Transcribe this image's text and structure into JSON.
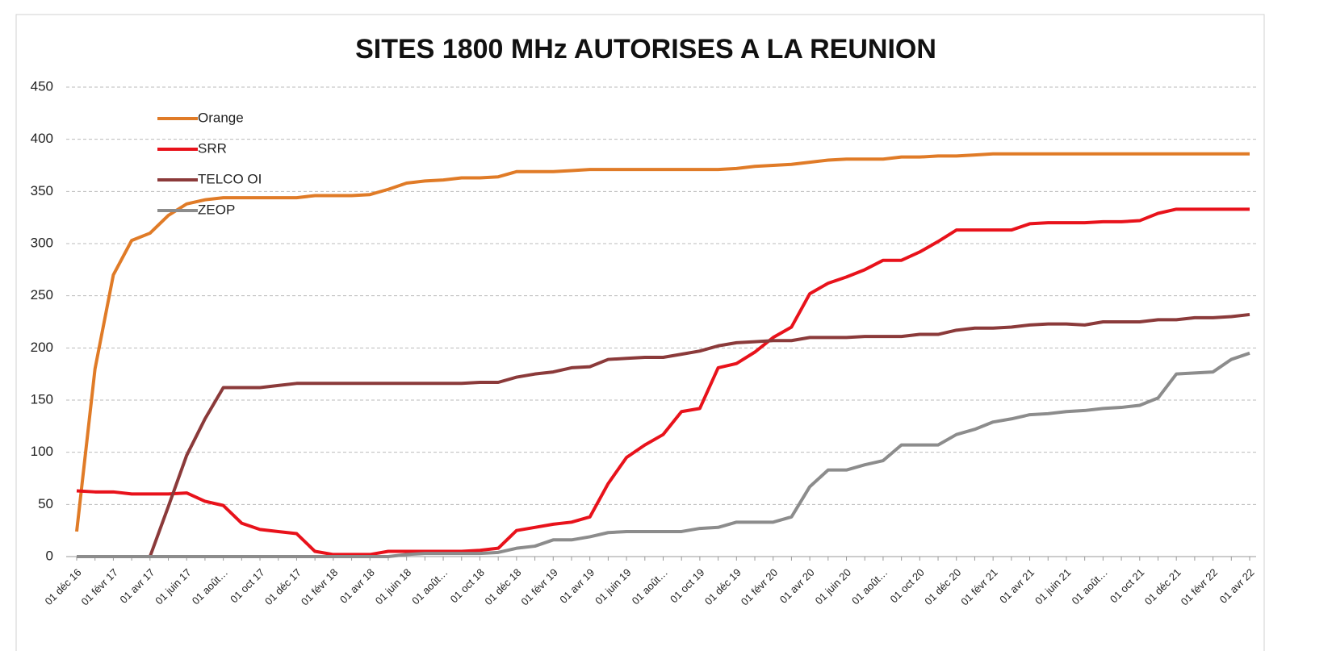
{
  "chart_data": {
    "type": "line",
    "title": "SITES 1800 MHz AUTORISES A LA REUNION",
    "categories": [
      "01 déc 16",
      null,
      "01 févr 17",
      null,
      "01 avr 17",
      null,
      "01 juin 17",
      null,
      "01 août…",
      null,
      "01 oct 17",
      null,
      "01 déc 17",
      null,
      "01 févr 18",
      null,
      "01 avr 18",
      null,
      "01 juin 18",
      null,
      "01 août…",
      null,
      "01 oct 18",
      null,
      "01 déc 18",
      null,
      "01 févr 19",
      null,
      "01 avr 19",
      null,
      "01 juin 19",
      null,
      "01 août…",
      null,
      "01 oct 19",
      null,
      "01 déc 19",
      null,
      "01 févr 20",
      null,
      "01 avr 20",
      null,
      "01 juin 20",
      null,
      "01 août…",
      null,
      "01 oct 20",
      null,
      "01 déc 20",
      null,
      "01 févr 21",
      null,
      "01 avr 21",
      null,
      "01 juin 21",
      null,
      "01 août…",
      null,
      "01 oct 21",
      null,
      "01 déc 21",
      null,
      "01 févr 22",
      null,
      "01 avr 22"
    ],
    "series": [
      {
        "name": "Orange",
        "color": "#e07b27",
        "values": [
          24,
          180,
          270,
          303,
          310,
          327,
          338,
          342,
          344,
          344,
          344,
          344,
          344,
          346,
          346,
          346,
          347,
          352,
          358,
          360,
          361,
          363,
          363,
          364,
          369,
          369,
          369,
          370,
          371,
          371,
          371,
          371,
          371,
          371,
          371,
          371,
          372,
          374,
          375,
          376,
          378,
          380,
          381,
          381,
          381,
          383,
          383,
          384,
          384,
          385,
          386,
          386,
          386,
          386,
          386,
          386,
          386,
          386,
          386,
          386,
          386,
          386,
          386,
          386,
          386
        ]
      },
      {
        "name": "SRR",
        "color": "#e8121b",
        "values": [
          63,
          62,
          62,
          60,
          60,
          60,
          61,
          53,
          49,
          32,
          26,
          24,
          22,
          5,
          2,
          2,
          2,
          5,
          5,
          5,
          5,
          5,
          6,
          8,
          25,
          28,
          31,
          33,
          38,
          70,
          95,
          107,
          117,
          139,
          142,
          181,
          185,
          196,
          210,
          220,
          252,
          262,
          268,
          275,
          284,
          284,
          292,
          302,
          313,
          313,
          313,
          313,
          319,
          320,
          320,
          320,
          321,
          321,
          322,
          329,
          333,
          333,
          333,
          333,
          333
        ]
      },
      {
        "name": "TELCO OI",
        "color": "#8b3a3a",
        "values": [
          0,
          0,
          0,
          0,
          0,
          48,
          97,
          132,
          162,
          162,
          162,
          164,
          166,
          166,
          166,
          166,
          166,
          166,
          166,
          166,
          166,
          166,
          167,
          167,
          172,
          175,
          177,
          181,
          182,
          189,
          190,
          191,
          191,
          194,
          197,
          202,
          205,
          206,
          207,
          207,
          210,
          210,
          210,
          211,
          211,
          211,
          213,
          213,
          217,
          219,
          219,
          220,
          222,
          223,
          223,
          222,
          225,
          225,
          225,
          227,
          227,
          229,
          229,
          230,
          232
        ]
      },
      {
        "name": "ZEOP",
        "color": "#8c8c8c",
        "values": [
          0,
          0,
          0,
          0,
          0,
          0,
          0,
          0,
          0,
          0,
          0,
          0,
          0,
          0,
          0,
          0,
          0,
          0,
          2,
          3,
          3,
          3,
          3,
          4,
          8,
          10,
          16,
          16,
          19,
          23,
          24,
          24,
          24,
          24,
          27,
          28,
          33,
          33,
          33,
          38,
          67,
          83,
          83,
          88,
          92,
          107,
          107,
          107,
          117,
          122,
          129,
          132,
          136,
          137,
          139,
          140,
          142,
          143,
          145,
          152,
          175,
          176,
          177,
          189,
          195
        ]
      }
    ],
    "ylim": [
      0,
      450
    ],
    "yticks": [
      0,
      50,
      100,
      150,
      200,
      250,
      300,
      350,
      400,
      450
    ],
    "grid": true,
    "legend": "top-left"
  }
}
